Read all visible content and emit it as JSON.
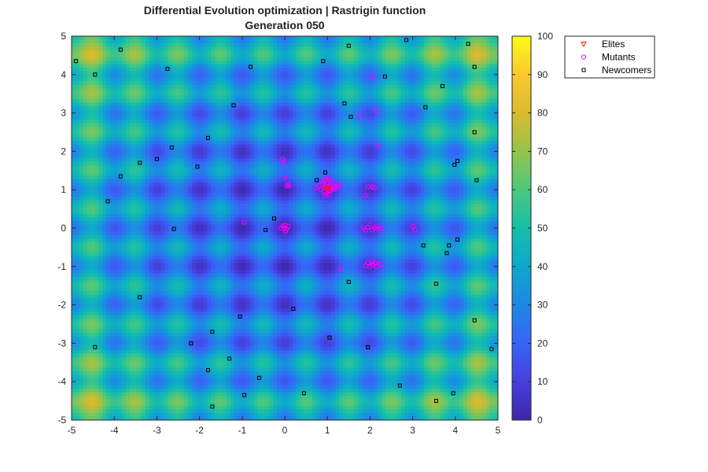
{
  "chart_data": {
    "type": "scatter",
    "title": "Differential Evolution optimization | Rastrigin function",
    "subtitle": "Generation 050",
    "xlabel": "",
    "ylabel": "",
    "xlim": [
      -5,
      5
    ],
    "ylim": [
      -5,
      5
    ],
    "x_ticks": [
      "-5",
      "-4",
      "-3",
      "-2",
      "-1",
      "0",
      "1",
      "2",
      "3",
      "4",
      "5"
    ],
    "y_ticks": [
      "-5",
      "-4",
      "-3",
      "-2",
      "-1",
      "0",
      "1",
      "2",
      "3",
      "4",
      "5"
    ],
    "grid": false,
    "background": {
      "kind": "heatmap",
      "function": "Rastrigin",
      "colormap": "parula",
      "clim": [
        0,
        100
      ]
    },
    "colorbar": {
      "ticks": [
        "0",
        "10",
        "20",
        "30",
        "40",
        "50",
        "60",
        "70",
        "80",
        "90",
        "100"
      ],
      "range": [
        0,
        100
      ]
    },
    "legend": {
      "placement": "outside-top-right",
      "entries": [
        {
          "label": "Elites",
          "marker": "triangle-down",
          "color": "#e0201b"
        },
        {
          "label": "Mutants",
          "marker": "circle",
          "color": "#ff00ff"
        },
        {
          "label": "Newcomers",
          "marker": "square",
          "color": "#000000"
        }
      ]
    },
    "series": [
      {
        "name": "Elites",
        "color": "#e0201b",
        "points": [
          [
            1.0,
            1.05
          ],
          [
            0.98,
            1.0
          ],
          [
            1.02,
            1.02
          ]
        ]
      },
      {
        "name": "Mutants",
        "color": "#ff00ff",
        "points": [
          [
            0.75,
            1.05
          ],
          [
            0.8,
            1.1
          ],
          [
            0.85,
            1.0
          ],
          [
            0.88,
            1.15
          ],
          [
            0.9,
            1.2
          ],
          [
            0.92,
            0.95
          ],
          [
            0.95,
            1.05
          ],
          [
            0.97,
            1.1
          ],
          [
            0.98,
            0.9
          ],
          [
            1.0,
            1.0
          ],
          [
            1.0,
            1.15
          ],
          [
            1.02,
            1.08
          ],
          [
            1.03,
            0.95
          ],
          [
            1.05,
            1.05
          ],
          [
            1.07,
            1.12
          ],
          [
            1.08,
            0.98
          ],
          [
            1.1,
            1.02
          ],
          [
            1.12,
            1.1
          ],
          [
            1.15,
            1.0
          ],
          [
            1.17,
            1.08
          ],
          [
            1.2,
            1.05
          ],
          [
            1.25,
            1.15
          ],
          [
            1.3,
            1.1
          ],
          [
            0.93,
            1.25
          ],
          [
            0.98,
            1.3
          ],
          [
            1.05,
            1.28
          ],
          [
            1.1,
            1.22
          ],
          [
            0.95,
            0.85
          ],
          [
            1.05,
            0.88
          ],
          [
            -0.05,
            1.8
          ],
          [
            -0.02,
            1.72
          ],
          [
            0.0,
            1.3
          ],
          [
            0.05,
            1.1
          ],
          [
            0.1,
            1.1
          ],
          [
            0.08,
            1.15
          ],
          [
            1.95,
            1.08
          ],
          [
            2.05,
            1.08
          ],
          [
            2.1,
            1.05
          ],
          [
            1.9,
            0.85
          ],
          [
            -0.1,
            0.0
          ],
          [
            -0.05,
            0.05
          ],
          [
            0.0,
            0.08
          ],
          [
            0.05,
            -0.02
          ],
          [
            0.08,
            0.05
          ],
          [
            0.02,
            -0.08
          ],
          [
            -0.02,
            0.0
          ],
          [
            -0.95,
            0.15
          ],
          [
            1.85,
            0.0
          ],
          [
            1.95,
            0.02
          ],
          [
            2.0,
            0.1
          ],
          [
            2.05,
            -0.05
          ],
          [
            2.1,
            0.0
          ],
          [
            2.15,
            0.05
          ],
          [
            2.2,
            -0.02
          ],
          [
            2.25,
            0.0
          ],
          [
            1.9,
            -0.05
          ],
          [
            1.95,
            -0.9
          ],
          [
            2.0,
            -1.0
          ],
          [
            2.05,
            -0.95
          ],
          [
            2.1,
            -0.9
          ],
          [
            2.15,
            -1.0
          ],
          [
            2.2,
            -0.92
          ],
          [
            2.25,
            -0.95
          ],
          [
            1.9,
            -0.98
          ],
          [
            2.05,
            -0.88
          ],
          [
            3.0,
            0.05
          ],
          [
            3.05,
            -0.05
          ],
          [
            1.3,
            -1.05
          ],
          [
            2.05,
            3.95
          ],
          [
            2.15,
            3.05
          ],
          [
            2.2,
            2.15
          ],
          [
            1.75,
            2.92
          ]
        ]
      },
      {
        "name": "Newcomers",
        "color": "#000000",
        "points": [
          [
            -4.9,
            4.35
          ],
          [
            -4.45,
            4.0
          ],
          [
            -3.85,
            4.65
          ],
          [
            -2.75,
            4.15
          ],
          [
            -0.8,
            4.2
          ],
          [
            0.9,
            4.35
          ],
          [
            1.5,
            4.75
          ],
          [
            2.85,
            4.9
          ],
          [
            4.3,
            4.8
          ],
          [
            4.45,
            4.2
          ],
          [
            2.35,
            3.95
          ],
          [
            3.7,
            3.7
          ],
          [
            -1.2,
            3.2
          ],
          [
            1.4,
            3.25
          ],
          [
            1.55,
            2.9
          ],
          [
            3.3,
            3.15
          ],
          [
            4.45,
            2.5
          ],
          [
            -1.8,
            2.35
          ],
          [
            -2.65,
            2.1
          ],
          [
            -3.0,
            1.8
          ],
          [
            -3.4,
            1.7
          ],
          [
            -2.05,
            1.6
          ],
          [
            -3.85,
            1.35
          ],
          [
            -4.15,
            0.7
          ],
          [
            0.95,
            1.45
          ],
          [
            0.75,
            1.25
          ],
          [
            4.05,
            1.75
          ],
          [
            3.98,
            1.65
          ],
          [
            4.5,
            1.25
          ],
          [
            -0.25,
            0.25
          ],
          [
            -0.45,
            -0.05
          ],
          [
            -2.6,
            -0.02
          ],
          [
            3.25,
            -0.45
          ],
          [
            3.85,
            -0.45
          ],
          [
            4.05,
            -0.3
          ],
          [
            3.8,
            -0.65
          ],
          [
            1.5,
            -1.4
          ],
          [
            3.55,
            -1.45
          ],
          [
            -3.4,
            -1.8
          ],
          [
            0.2,
            -2.1
          ],
          [
            -1.05,
            -2.3
          ],
          [
            4.45,
            -2.4
          ],
          [
            -1.7,
            -2.7
          ],
          [
            1.05,
            -2.85
          ],
          [
            -2.2,
            -3.0
          ],
          [
            -4.45,
            -3.1
          ],
          [
            1.95,
            -3.1
          ],
          [
            4.85,
            -3.15
          ],
          [
            -1.3,
            -3.4
          ],
          [
            -1.8,
            -3.7
          ],
          [
            -0.6,
            -3.9
          ],
          [
            2.7,
            -4.1
          ],
          [
            0.45,
            -4.3
          ],
          [
            -0.95,
            -4.35
          ],
          [
            3.95,
            -4.3
          ],
          [
            3.55,
            -4.5
          ],
          [
            -1.7,
            -4.65
          ]
        ]
      }
    ]
  }
}
